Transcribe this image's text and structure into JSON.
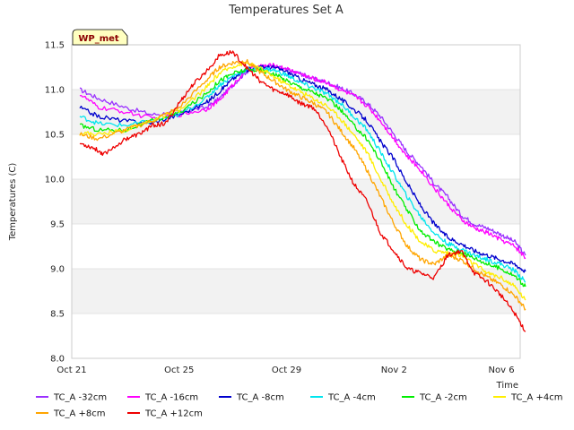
{
  "chart_data": {
    "type": "line",
    "title": "Temperatures Set A",
    "xlabel": "Time",
    "ylabel": "Temperatures (C)",
    "badge": "WP_met",
    "xlim": [
      0,
      16.7
    ],
    "ylim": [
      8.0,
      11.5
    ],
    "x_ticks": [
      {
        "value": 0,
        "label": "Oct 21"
      },
      {
        "value": 4,
        "label": "Oct 25"
      },
      {
        "value": 8,
        "label": "Oct 29"
      },
      {
        "value": 12,
        "label": "Nov 2"
      },
      {
        "value": 16,
        "label": "Nov 6"
      }
    ],
    "y_ticks": [
      8.0,
      8.5,
      9.0,
      9.5,
      10.0,
      10.5,
      11.0,
      11.5
    ],
    "y_tick_labels": [
      "8.0",
      "8.5",
      "9.0",
      "9.5",
      "10.0",
      "10.5",
      "11.0",
      "11.5"
    ],
    "grid": true,
    "legend_position": "bottom",
    "series": [
      {
        "name": "TC_A -32cm",
        "color": "#9b30ff",
        "x": [
          0.3,
          1.0,
          2.0,
          3.0,
          4.0,
          5.0,
          5.5,
          6.0,
          6.5,
          7.0,
          7.5,
          8.0,
          8.5,
          9.0,
          9.5,
          10.0,
          10.5,
          11.0,
          11.5,
          12.0,
          12.5,
          13.0,
          13.5,
          14.0,
          14.5,
          15.0,
          15.5,
          16.0,
          16.5,
          16.9
        ],
        "y": [
          11.0,
          10.9,
          10.8,
          10.72,
          10.75,
          10.8,
          10.9,
          11.05,
          11.2,
          11.25,
          11.26,
          11.22,
          11.18,
          11.12,
          11.08,
          11.02,
          10.95,
          10.85,
          10.7,
          10.5,
          10.3,
          10.15,
          9.95,
          9.8,
          9.6,
          9.5,
          9.45,
          9.38,
          9.3,
          9.15
        ]
      },
      {
        "name": "TC_A -16cm",
        "color": "#ff00ff",
        "x": [
          0.3,
          1.0,
          2.0,
          3.0,
          4.0,
          5.0,
          5.5,
          6.0,
          6.5,
          7.0,
          7.5,
          8.0,
          8.5,
          9.0,
          9.5,
          10.0,
          10.5,
          11.0,
          11.5,
          12.0,
          12.5,
          13.0,
          13.5,
          14.0,
          14.5,
          15.0,
          15.5,
          16.0,
          16.5,
          16.9
        ],
        "y": [
          10.95,
          10.8,
          10.75,
          10.68,
          10.72,
          10.78,
          10.88,
          11.05,
          11.22,
          11.26,
          11.27,
          11.23,
          11.18,
          11.12,
          11.08,
          11.0,
          10.93,
          10.82,
          10.65,
          10.45,
          10.25,
          10.1,
          9.9,
          9.72,
          9.55,
          9.45,
          9.4,
          9.32,
          9.25,
          9.12
        ]
      },
      {
        "name": "TC_A -8cm",
        "color": "#0000cd",
        "x": [
          0.3,
          1.0,
          2.0,
          3.0,
          4.0,
          5.0,
          5.5,
          6.0,
          6.5,
          7.0,
          7.5,
          8.0,
          8.5,
          9.0,
          9.5,
          10.0,
          10.5,
          11.0,
          11.5,
          12.0,
          12.5,
          13.0,
          13.5,
          14.0,
          14.5,
          15.0,
          15.5,
          16.0,
          16.5,
          16.9
        ],
        "y": [
          10.8,
          10.7,
          10.65,
          10.63,
          10.72,
          10.85,
          10.98,
          11.12,
          11.22,
          11.25,
          11.25,
          11.2,
          11.12,
          11.06,
          11.0,
          10.9,
          10.78,
          10.65,
          10.42,
          10.22,
          9.95,
          9.7,
          9.5,
          9.35,
          9.28,
          9.2,
          9.15,
          9.1,
          9.05,
          8.97
        ]
      },
      {
        "name": "TC_A -4cm",
        "color": "#00e5ee",
        "x": [
          0.3,
          1.0,
          2.0,
          3.0,
          4.0,
          5.0,
          5.5,
          6.0,
          6.5,
          7.0,
          7.5,
          8.0,
          8.5,
          9.0,
          9.5,
          10.0,
          10.5,
          11.0,
          11.5,
          12.0,
          12.5,
          13.0,
          13.5,
          14.0,
          14.5,
          15.0,
          15.5,
          16.0,
          16.5,
          16.9
        ],
        "y": [
          10.7,
          10.62,
          10.6,
          10.65,
          10.72,
          10.9,
          11.05,
          11.15,
          11.22,
          11.24,
          11.22,
          11.16,
          11.08,
          11.02,
          10.95,
          10.85,
          10.7,
          10.55,
          10.3,
          10.05,
          9.8,
          9.58,
          9.4,
          9.28,
          9.22,
          9.15,
          9.1,
          9.05,
          8.98,
          8.85
        ]
      },
      {
        "name": "TC_A -2cm",
        "color": "#00ee00",
        "x": [
          0.3,
          1.0,
          2.0,
          3.0,
          4.0,
          5.0,
          5.5,
          6.0,
          6.5,
          7.0,
          7.5,
          8.0,
          8.5,
          9.0,
          9.5,
          10.0,
          10.5,
          11.0,
          11.5,
          12.0,
          12.5,
          13.0,
          13.5,
          14.0,
          14.5,
          15.0,
          15.5,
          16.0,
          16.5,
          16.9
        ],
        "y": [
          10.6,
          10.55,
          10.55,
          10.65,
          10.74,
          10.95,
          11.1,
          11.18,
          11.22,
          11.22,
          11.18,
          11.1,
          11.03,
          10.97,
          10.9,
          10.78,
          10.6,
          10.45,
          10.2,
          9.9,
          9.65,
          9.42,
          9.3,
          9.22,
          9.18,
          9.12,
          9.05,
          9.0,
          8.92,
          8.8
        ]
      },
      {
        "name": "TC_A +4cm",
        "color": "#ffee00",
        "x": [
          0.3,
          1.0,
          2.0,
          3.0,
          4.0,
          5.0,
          5.5,
          6.0,
          6.5,
          7.0,
          7.5,
          8.0,
          8.5,
          9.0,
          9.5,
          10.0,
          10.5,
          11.0,
          11.5,
          12.0,
          12.5,
          13.0,
          13.5,
          14.0,
          14.5,
          15.0,
          15.5,
          16.0,
          16.5,
          16.9
        ],
        "y": [
          10.52,
          10.5,
          10.55,
          10.66,
          10.76,
          11.02,
          11.18,
          11.26,
          11.3,
          11.24,
          11.15,
          11.06,
          10.98,
          10.9,
          10.82,
          10.68,
          10.5,
          10.3,
          10.0,
          9.72,
          9.48,
          9.3,
          9.2,
          9.18,
          9.15,
          9.05,
          8.95,
          8.9,
          8.8,
          8.65
        ]
      },
      {
        "name": "TC_A +8cm",
        "color": "#ffa500",
        "x": [
          0.3,
          1.0,
          2.0,
          3.0,
          4.0,
          5.0,
          5.5,
          6.0,
          6.5,
          7.0,
          7.5,
          8.0,
          8.5,
          9.0,
          9.5,
          10.0,
          10.5,
          11.0,
          11.5,
          12.0,
          12.5,
          13.0,
          13.5,
          14.0,
          14.5,
          15.0,
          15.5,
          16.0,
          16.5,
          16.9
        ],
        "y": [
          10.5,
          10.45,
          10.55,
          10.65,
          10.8,
          11.1,
          11.25,
          11.3,
          11.32,
          11.2,
          11.1,
          11.0,
          10.92,
          10.85,
          10.75,
          10.55,
          10.35,
          10.1,
          9.8,
          9.5,
          9.25,
          9.1,
          9.05,
          9.15,
          9.1,
          9.0,
          8.9,
          8.82,
          8.7,
          8.55
        ]
      },
      {
        "name": "TC_A +12cm",
        "color": "#ee0000",
        "x": [
          0.3,
          0.8,
          1.2,
          2.0,
          2.5,
          3.0,
          3.5,
          4.0,
          4.5,
          5.0,
          5.5,
          6.0,
          6.5,
          7.0,
          7.5,
          8.0,
          8.5,
          9.0,
          9.5,
          10.0,
          10.5,
          11.0,
          11.5,
          12.0,
          12.5,
          13.0,
          13.5,
          14.0,
          14.5,
          15.0,
          15.5,
          16.0,
          16.5,
          16.9
        ],
        "y": [
          10.4,
          10.35,
          10.28,
          10.45,
          10.5,
          10.6,
          10.62,
          10.85,
          11.05,
          11.2,
          11.38,
          11.42,
          11.25,
          11.1,
          11.0,
          10.95,
          10.85,
          10.8,
          10.6,
          10.25,
          9.95,
          9.75,
          9.4,
          9.2,
          9.0,
          8.95,
          8.9,
          9.15,
          9.2,
          8.95,
          8.85,
          8.7,
          8.5,
          8.3
        ]
      }
    ]
  }
}
